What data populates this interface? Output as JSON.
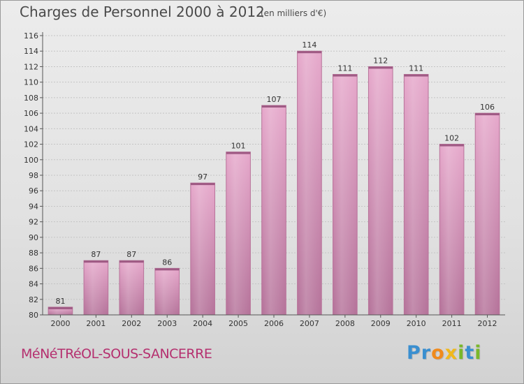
{
  "chart_data": {
    "type": "bar",
    "title": "Charges de Personnel 2000 à 2012",
    "subtitle": "(en milliers d'€)",
    "categories": [
      "2000",
      "2001",
      "2002",
      "2003",
      "2004",
      "2005",
      "2006",
      "2007",
      "2008",
      "2009",
      "2010",
      "2011",
      "2012"
    ],
    "values": [
      81,
      87,
      87,
      86,
      97,
      101,
      107,
      114,
      111,
      112,
      111,
      102,
      106
    ],
    "ylim": [
      80,
      116
    ],
    "yticks": [
      80,
      82,
      84,
      86,
      88,
      90,
      92,
      94,
      96,
      98,
      100,
      102,
      104,
      106,
      108,
      110,
      112,
      114,
      116
    ],
    "grid": true,
    "bar_color": "#d585b1"
  },
  "footer": {
    "commune": "MéNéTRéOL-SOUS-SANCERRE",
    "brand_letters": [
      {
        "ch": "P",
        "color": "#3a8fd0"
      },
      {
        "ch": "r",
        "color": "#3a8fd0"
      },
      {
        "ch": "o",
        "color": "#f08a1c"
      },
      {
        "ch": "x",
        "color": "#f0b81c"
      },
      {
        "ch": "i",
        "color": "#7ab82a"
      },
      {
        "ch": "t",
        "color": "#3a8fd0"
      },
      {
        "ch": "i",
        "color": "#7ab82a"
      }
    ]
  },
  "colors": {
    "title": "#4a4a4a",
    "commune": "#b5306f"
  }
}
